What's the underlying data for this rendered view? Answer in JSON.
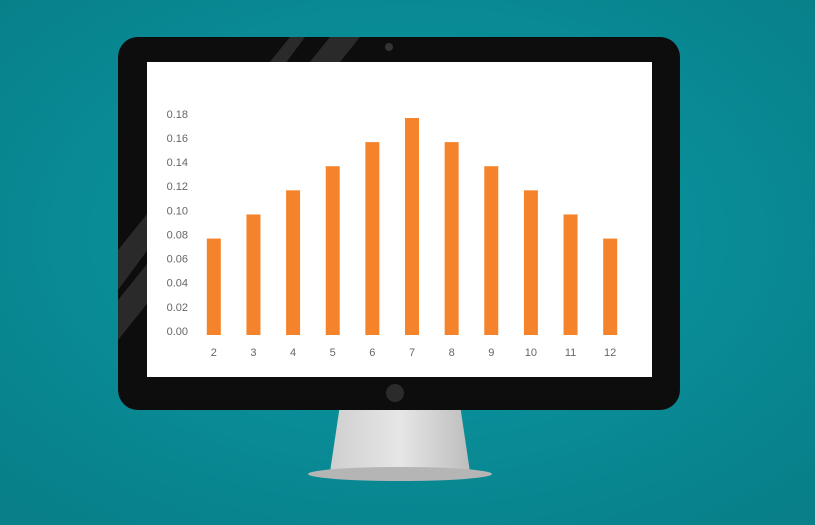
{
  "chart_data": {
    "type": "bar",
    "categories": [
      "2",
      "3",
      "4",
      "5",
      "6",
      "7",
      "8",
      "9",
      "10",
      "11",
      "12"
    ],
    "values": [
      0.08,
      0.1,
      0.12,
      0.14,
      0.16,
      0.18,
      0.16,
      0.14,
      0.12,
      0.1,
      0.08
    ],
    "color": "#f5832b",
    "ylim": [
      0,
      0.18
    ],
    "yticks": [
      {
        "value": 0,
        "label": "0.00"
      },
      {
        "value": 0.02,
        "label": "0.02"
      },
      {
        "value": 0.04,
        "label": "0.04"
      },
      {
        "value": 0.06,
        "label": "0.06"
      },
      {
        "value": 0.08,
        "label": "0.08"
      },
      {
        "value": 0.1,
        "label": "0.10"
      },
      {
        "value": 0.12,
        "label": "0.12"
      },
      {
        "value": 0.14,
        "label": "0.14"
      },
      {
        "value": 0.16,
        "label": "0.16"
      },
      {
        "value": 0.18,
        "label": "0.18"
      }
    ],
    "grid": false
  }
}
